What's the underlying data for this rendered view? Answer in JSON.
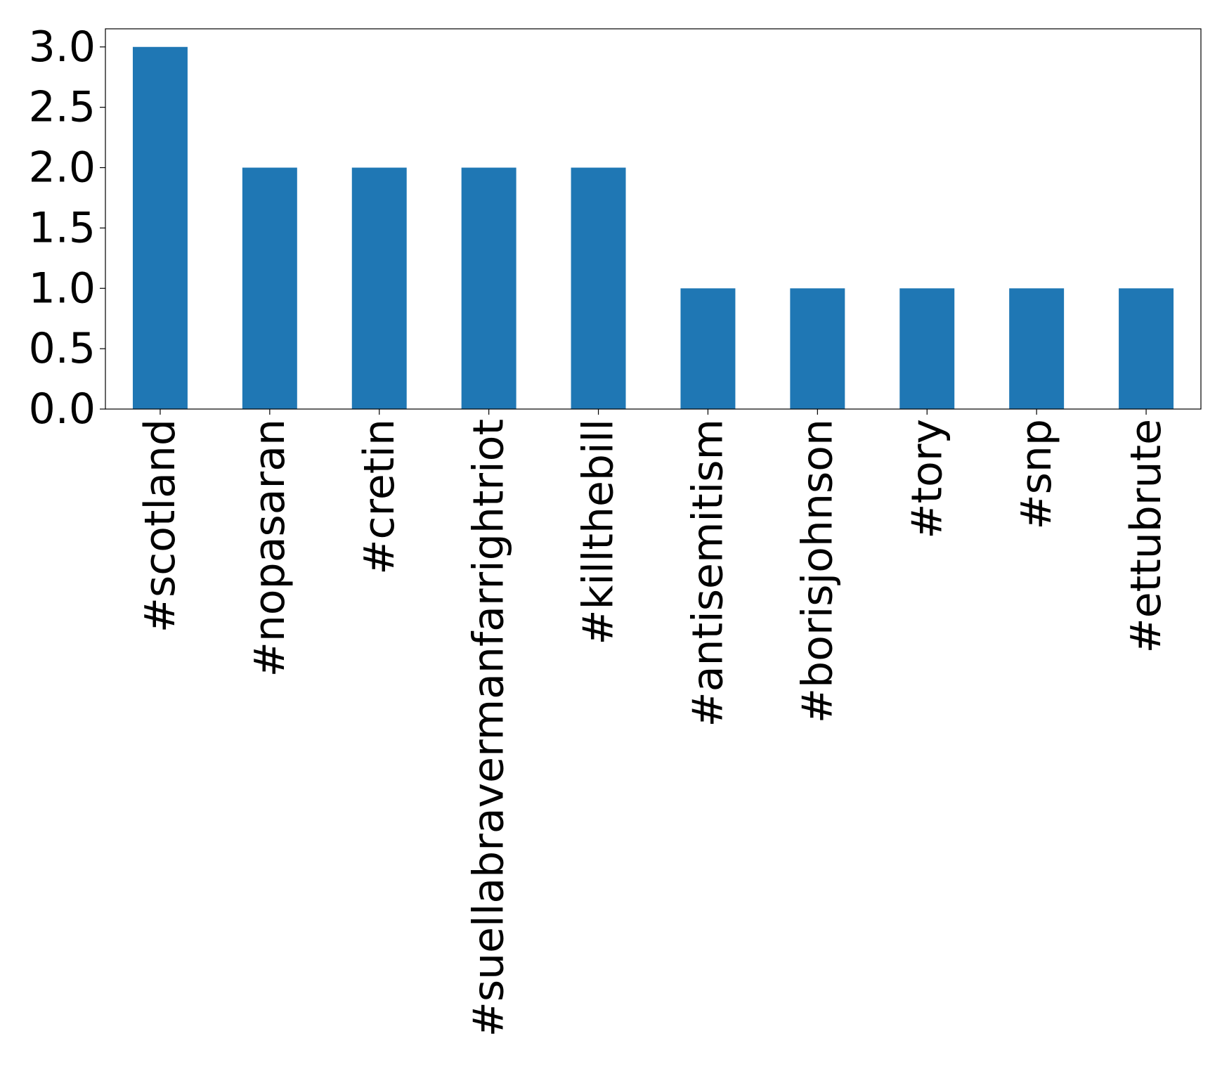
{
  "chart_data": {
    "type": "bar",
    "title": "",
    "xlabel": "",
    "ylabel": "",
    "categories": [
      "#scotland",
      "#nopasaran",
      "#cretin",
      "#suellabravermanfarrightriot",
      "#killthebill",
      "#antisemitism",
      "#borisjohnson",
      "#tory",
      "#snp",
      "#ettubrute"
    ],
    "values": [
      3,
      2,
      2,
      2,
      2,
      1,
      1,
      1,
      1,
      1
    ],
    "ylim": [
      0,
      3.15
    ],
    "yticks": [
      0.0,
      0.5,
      1.0,
      1.5,
      2.0,
      2.5,
      3.0
    ],
    "ytick_labels": [
      "0.0",
      "0.5",
      "1.0",
      "1.5",
      "2.0",
      "2.5",
      "3.0"
    ],
    "xtick_rotation": "vertical",
    "bar_color": "#1f77b4",
    "grid": false,
    "legend": "none"
  }
}
